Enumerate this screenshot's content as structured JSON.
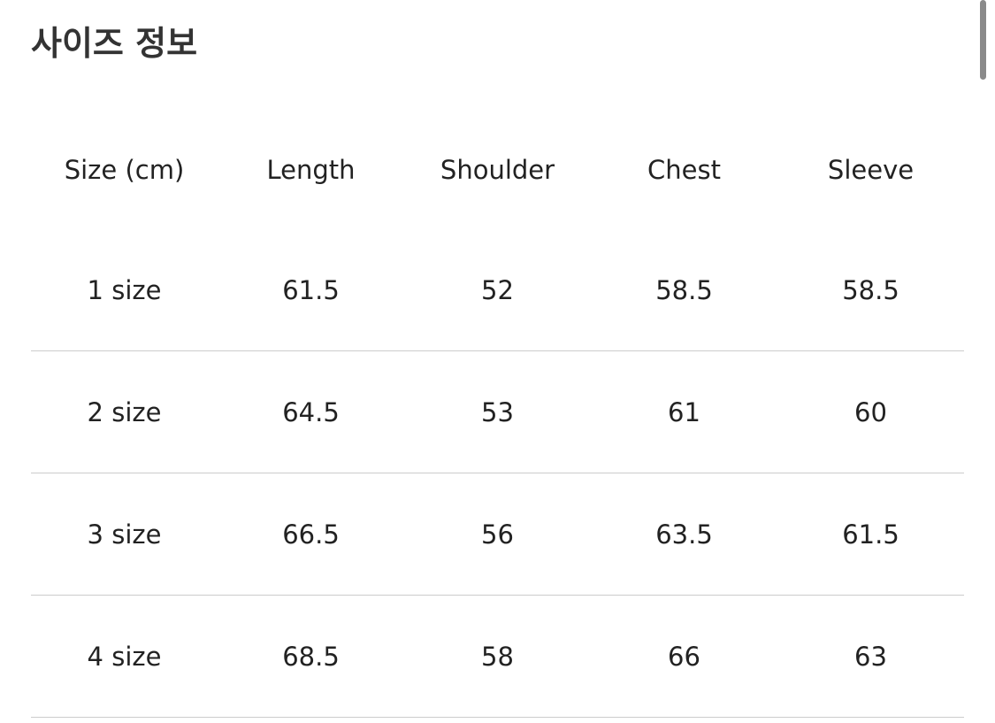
{
  "title": "사이즈 정보",
  "headers": [
    "Size (cm)",
    "Length",
    "Shoulder",
    "Chest",
    "Sleeve"
  ],
  "rows": [
    [
      "1 size",
      "61.5",
      "52",
      "58.5",
      "58.5"
    ],
    [
      "2 size",
      "64.5",
      "53",
      "61",
      "60"
    ],
    [
      "3 size",
      "66.5",
      "56",
      "63.5",
      "61.5"
    ],
    [
      "4 size",
      "68.5",
      "58",
      "66",
      "63"
    ]
  ]
}
